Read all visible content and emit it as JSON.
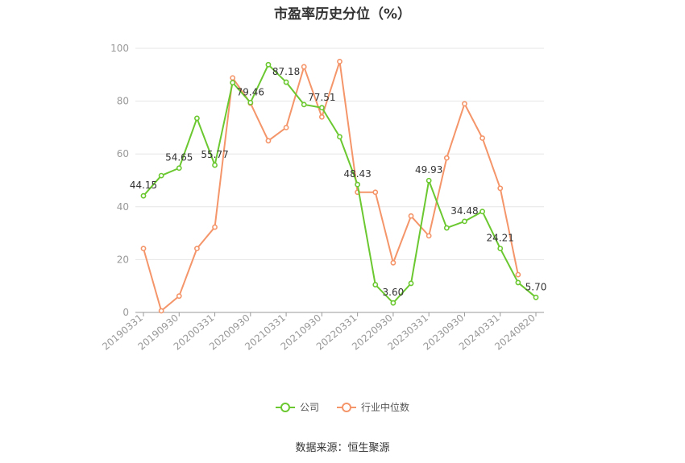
{
  "chart_data": {
    "type": "line",
    "title": "市盈率历史分位（%）",
    "xlabel": "",
    "ylabel": "",
    "ylim": [
      0,
      100
    ],
    "yticks": [
      "0",
      "20",
      "40",
      "60",
      "80",
      "100"
    ],
    "tick_labels": [
      "20190331",
      "20190930",
      "20200331",
      "20200930",
      "20210331",
      "20210930",
      "20220331",
      "20220930",
      "20230331",
      "20230930",
      "20240331",
      "20240820"
    ],
    "grid": true,
    "legend_position": "bottom",
    "series": [
      {
        "name": "公司",
        "color": "#6bc830",
        "values": [
          44.15,
          51.8,
          54.65,
          73.5,
          55.77,
          87.0,
          79.46,
          93.8,
          87.18,
          78.7,
          77.51,
          66.5,
          48.43,
          10.5,
          3.6,
          11.0,
          49.93,
          32.0,
          34.48,
          38.2,
          24.21,
          11.3,
          5.7
        ],
        "data_labels": [
          "44.15",
          "",
          "54.65",
          "",
          "55.77",
          "",
          "79.46",
          "",
          "87.18",
          "",
          "77.51",
          "",
          "48.43",
          "",
          "3.60",
          "",
          "49.93",
          "",
          "34.48",
          "",
          "24.21",
          "",
          "5.70"
        ]
      },
      {
        "name": "行业中位数",
        "color": "#f4956a",
        "values": [
          24.2,
          0.6,
          6.2,
          24.2,
          32.3,
          88.8,
          79.2,
          65.0,
          70.0,
          93.0,
          74.0,
          95.0,
          45.5,
          45.5,
          18.8,
          36.5,
          29.0,
          58.5,
          79.0,
          66.0,
          47.0,
          14.3,
          null
        ]
      }
    ],
    "source_note": "数据来源：恒生聚源"
  }
}
